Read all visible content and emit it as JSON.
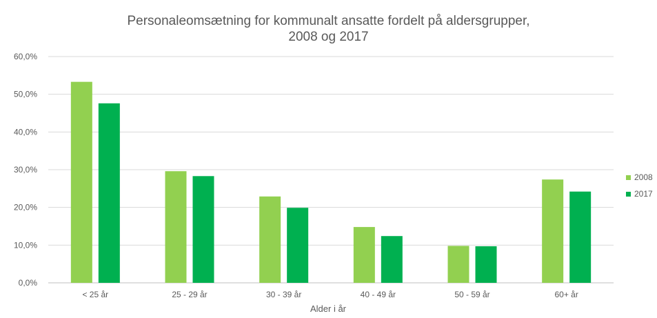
{
  "chart_data": {
    "type": "bar",
    "title_line1": "Personaleomsætning for kommunalt ansatte fordelt på aldersgrupper,",
    "title_line2": "2008 og 2017",
    "xlabel": "Alder i år",
    "ylabel": "",
    "categories": [
      "< 25 år",
      "25 - 29 år",
      "30 - 39 år",
      "40 - 49 år",
      "50 - 59 år",
      "60+ år"
    ],
    "series": [
      {
        "name": "2008",
        "color": "#92d050",
        "values": [
          53.3,
          29.6,
          22.9,
          14.8,
          9.8,
          27.4
        ]
      },
      {
        "name": "2017",
        "color": "#00b050",
        "values": [
          47.6,
          28.3,
          19.9,
          12.4,
          9.7,
          24.2
        ]
      }
    ],
    "ylim": [
      0,
      60
    ],
    "yticks": [
      0,
      10,
      20,
      30,
      40,
      50,
      60
    ],
    "ytick_labels": [
      "0,0%",
      "10,0%",
      "20,0%",
      "30,0%",
      "40,0%",
      "50,0%",
      "60,0%"
    ],
    "grid": true,
    "legend_position": "right"
  }
}
